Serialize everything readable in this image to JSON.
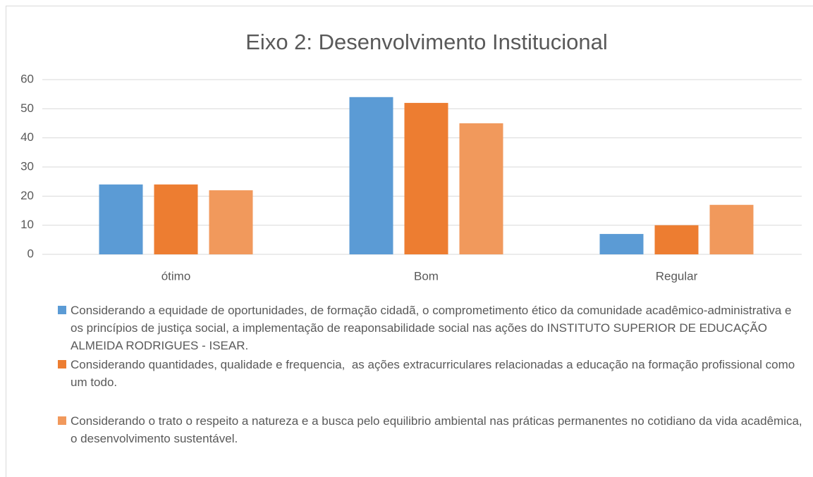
{
  "chart_data": {
    "type": "bar",
    "title": "Eixo 2: Desenvolvimento Institucional",
    "categories": [
      "ótimo",
      "Bom",
      "Regular"
    ],
    "series": [
      {
        "name": "Considerando a equidade de oportunidades, de formação cidadã, o comprometimento ético da comunidade acadêmico-administrativa e os princípios de justiça social, a implementação de reaponsabilidade social nas ações do INSTITUTO SUPERIOR DE EDUCAÇÃO ALMEIDA RODRIGUES - ISEAR.",
        "color": "#5b9bd5",
        "values": [
          24,
          54,
          7
        ]
      },
      {
        "name": "Considerando quantidades, qualidade e frequencia,  as ações extracurriculares relacionadas a educação na formação profissional como um todo.",
        "color": "#ed7d31",
        "values": [
          24,
          52,
          10
        ]
      },
      {
        "name": "Considerando o trato o respeito a natureza e a busca pelo equilibrio ambiental nas práticas permanentes no cotidiano da vida acadêmica, o desenvolvimento sustentável.",
        "color": "#f1995c",
        "values": [
          22,
          45,
          17
        ]
      }
    ],
    "ylim": [
      0,
      60
    ],
    "yticks": [
      0,
      10,
      20,
      30,
      40,
      50,
      60
    ],
    "grid": true,
    "legend": "bottom"
  }
}
